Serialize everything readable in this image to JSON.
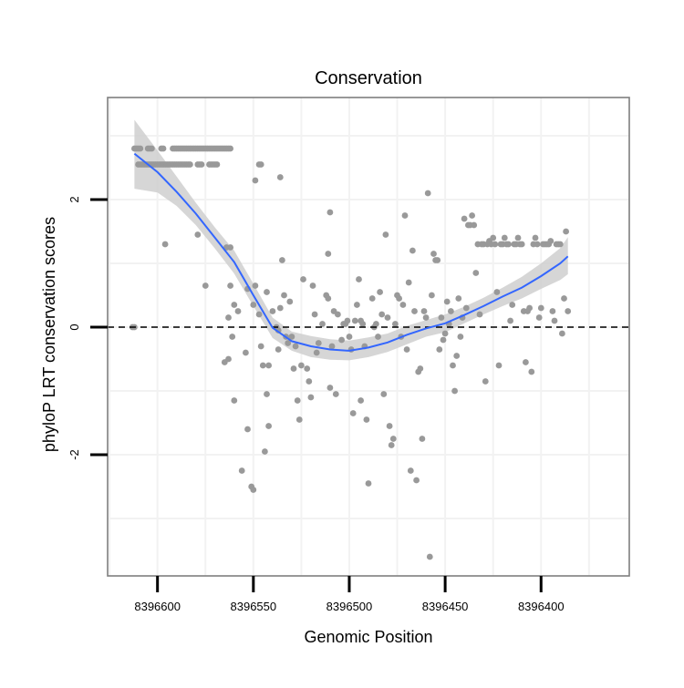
{
  "chart_data": {
    "type": "scatter",
    "title": "Conservation",
    "xlabel": "Genomic Position",
    "ylabel": "phyloP LRT conservation scores",
    "x_reversed": true,
    "xlim": [
      8396626,
      8396354
    ],
    "ylim": [
      -3.9,
      3.6
    ],
    "x_ticks": [
      8396600,
      8396550,
      8396500,
      8396450,
      8396400
    ],
    "x_tick_labels": [
      "8396600",
      "8396550",
      "8396500",
      "8396450",
      "8396400"
    ],
    "y_ticks": [
      -2,
      0,
      2
    ],
    "y_tick_labels": [
      "-2",
      "0",
      "2"
    ],
    "reference_line": {
      "y": 0,
      "style": "dashed"
    },
    "grid": true,
    "colors": {
      "points": "#999999",
      "smooth_line": "#3366ff",
      "confidence_band": "#cccccc",
      "panel_border": "#7f7f7f",
      "grid": "#f2f2f2"
    },
    "points": [
      [
        8396613,
        0.0
      ],
      [
        8396612,
        0.0
      ],
      [
        8396612,
        2.8
      ],
      [
        8396611,
        2.8
      ],
      [
        8396610,
        2.8
      ],
      [
        8396609,
        2.8
      ],
      [
        8396605,
        2.8
      ],
      [
        8396604,
        2.8
      ],
      [
        8396603,
        2.8
      ],
      [
        8396598,
        2.8
      ],
      [
        8396597,
        2.8
      ],
      [
        8396592,
        2.8
      ],
      [
        8396591,
        2.8
      ],
      [
        8396590,
        2.8
      ],
      [
        8396589,
        2.8
      ],
      [
        8396588,
        2.8
      ],
      [
        8396587,
        2.8
      ],
      [
        8396586,
        2.8
      ],
      [
        8396585,
        2.8
      ],
      [
        8396584,
        2.8
      ],
      [
        8396583,
        2.8
      ],
      [
        8396582,
        2.8
      ],
      [
        8396581,
        2.8
      ],
      [
        8396580,
        2.8
      ],
      [
        8396579,
        2.8
      ],
      [
        8396578,
        2.8
      ],
      [
        8396577,
        2.8
      ],
      [
        8396576,
        2.8
      ],
      [
        8396575,
        2.8
      ],
      [
        8396574,
        2.8
      ],
      [
        8396573,
        2.8
      ],
      [
        8396572,
        2.8
      ],
      [
        8396571,
        2.8
      ],
      [
        8396570,
        2.8
      ],
      [
        8396569,
        2.8
      ],
      [
        8396568,
        2.8
      ],
      [
        8396567,
        2.8
      ],
      [
        8396566,
        2.8
      ],
      [
        8396565,
        2.8
      ],
      [
        8396564,
        2.8
      ],
      [
        8396563,
        2.8
      ],
      [
        8396562,
        2.8
      ],
      [
        8396610,
        2.55
      ],
      [
        8396609,
        2.55
      ],
      [
        8396608,
        2.55
      ],
      [
        8396607,
        2.55
      ],
      [
        8396606,
        2.55
      ],
      [
        8396605,
        2.55
      ],
      [
        8396604,
        2.55
      ],
      [
        8396603,
        2.55
      ],
      [
        8396602,
        2.55
      ],
      [
        8396601,
        2.55
      ],
      [
        8396600,
        2.55
      ],
      [
        8396599,
        2.55
      ],
      [
        8396598,
        2.55
      ],
      [
        8396597,
        2.55
      ],
      [
        8396596,
        2.55
      ],
      [
        8396595,
        2.55
      ],
      [
        8396594,
        2.55
      ],
      [
        8396593,
        2.55
      ],
      [
        8396592,
        2.55
      ],
      [
        8396591,
        2.55
      ],
      [
        8396590,
        2.55
      ],
      [
        8396589,
        2.55
      ],
      [
        8396588,
        2.55
      ],
      [
        8396587,
        2.55
      ],
      [
        8396586,
        2.55
      ],
      [
        8396585,
        2.55
      ],
      [
        8396584,
        2.55
      ],
      [
        8396583,
        2.55
      ],
      [
        8396579,
        2.55
      ],
      [
        8396578,
        2.55
      ],
      [
        8396577,
        2.55
      ],
      [
        8396573,
        2.55
      ],
      [
        8396572,
        2.55
      ],
      [
        8396571,
        2.55
      ],
      [
        8396570,
        2.55
      ],
      [
        8396569,
        2.55
      ],
      [
        8396596,
        1.3
      ],
      [
        8396579,
        1.45
      ],
      [
        8396564,
        1.25
      ],
      [
        8396562,
        1.25
      ],
      [
        8396562,
        0.65
      ],
      [
        8396560,
        0.35
      ],
      [
        8396558,
        0.25
      ],
      [
        8396563,
        0.15
      ],
      [
        8396565,
        -0.55
      ],
      [
        8396563,
        -0.5
      ],
      [
        8396561,
        -0.15
      ],
      [
        8396560,
        -1.15
      ],
      [
        8396554,
        -0.4
      ],
      [
        8396556,
        -2.25
      ],
      [
        8396553,
        -1.6
      ],
      [
        8396551,
        -2.5
      ],
      [
        8396550,
        -2.55
      ],
      [
        8396553,
        0.6
      ],
      [
        8396550,
        0.35
      ],
      [
        8396549,
        0.65
      ],
      [
        8396547,
        0.2
      ],
      [
        8396546,
        -0.3
      ],
      [
        8396545,
        -0.6
      ],
      [
        8396544,
        -1.95
      ],
      [
        8396543,
        -1.05
      ],
      [
        8396542,
        -0.6
      ],
      [
        8396542,
        -1.55
      ],
      [
        8396540,
        0.25
      ],
      [
        8396538,
        0.0
      ],
      [
        8396537,
        -0.05
      ],
      [
        8396537,
        -0.35
      ],
      [
        8396535,
        1.05
      ],
      [
        8396534,
        0.5
      ],
      [
        8396533,
        -0.15
      ],
      [
        8396532,
        -0.25
      ],
      [
        8396531,
        0.4
      ],
      [
        8396530,
        -0.15
      ],
      [
        8396529,
        -0.65
      ],
      [
        8396528,
        -0.3
      ],
      [
        8396527,
        -1.15
      ],
      [
        8396526,
        -1.45
      ],
      [
        8396525,
        -0.6
      ],
      [
        8396524,
        0.75
      ],
      [
        8396522,
        -0.65
      ],
      [
        8396521,
        -0.85
      ],
      [
        8396520,
        -1.1
      ],
      [
        8396519,
        0.65
      ],
      [
        8396518,
        0.2
      ],
      [
        8396517,
        -0.4
      ],
      [
        8396516,
        -0.25
      ],
      [
        8396549,
        2.3
      ],
      [
        8396547,
        2.55
      ],
      [
        8396546,
        2.55
      ],
      [
        8396536,
        2.35
      ],
      [
        8396514,
        0.05
      ],
      [
        8396512,
        0.5
      ],
      [
        8396511,
        0.45
      ],
      [
        8396510,
        -0.95
      ],
      [
        8396509,
        -0.3
      ],
      [
        8396508,
        0.25
      ],
      [
        8396507,
        -1.05
      ],
      [
        8396506,
        0.2
      ],
      [
        8396504,
        -0.2
      ],
      [
        8396503,
        0.05
      ],
      [
        8396502,
        0.05
      ],
      [
        8396501,
        0.1
      ],
      [
        8396500,
        -0.15
      ],
      [
        8396499,
        -0.35
      ],
      [
        8396498,
        -1.35
      ],
      [
        8396497,
        0.1
      ],
      [
        8396496,
        0.35
      ],
      [
        8396495,
        0.75
      ],
      [
        8396494,
        -1.15
      ],
      [
        8396493,
        0.05
      ],
      [
        8396492,
        -0.3
      ],
      [
        8396491,
        -1.45
      ],
      [
        8396490,
        -2.45
      ],
      [
        8396510,
        1.8
      ],
      [
        8396494,
        0.1
      ],
      [
        8396488,
        0.45
      ],
      [
        8396487,
        0.0
      ],
      [
        8396486,
        0.05
      ],
      [
        8396485,
        -0.15
      ],
      [
        8396484,
        0.55
      ],
      [
        8396483,
        0.2
      ],
      [
        8396482,
        -1.05
      ],
      [
        8396481,
        1.45
      ],
      [
        8396480,
        0.15
      ],
      [
        8396479,
        -1.55
      ],
      [
        8396478,
        -1.85
      ],
      [
        8396477,
        -1.75
      ],
      [
        8396476,
        0.05
      ],
      [
        8396475,
        0.5
      ],
      [
        8396474,
        0.45
      ],
      [
        8396473,
        -0.15
      ],
      [
        8396472,
        0.35
      ],
      [
        8396471,
        1.75
      ],
      [
        8396470,
        -0.35
      ],
      [
        8396469,
        0.7
      ],
      [
        8396468,
        -2.25
      ],
      [
        8396467,
        1.2
      ],
      [
        8396466,
        0.25
      ],
      [
        8396465,
        -2.4
      ],
      [
        8396464,
        -0.7
      ],
      [
        8396463,
        -0.65
      ],
      [
        8396462,
        -1.75
      ],
      [
        8396461,
        0.25
      ],
      [
        8396460,
        0.15
      ],
      [
        8396459,
        2.1
      ],
      [
        8396458,
        -3.6
      ],
      [
        8396457,
        0.5
      ],
      [
        8396456,
        1.15
      ],
      [
        8396455,
        1.05
      ],
      [
        8396454,
        1.05
      ],
      [
        8396453,
        -0.35
      ],
      [
        8396452,
        0.15
      ],
      [
        8396451,
        -0.2
      ],
      [
        8396450,
        -0.1
      ],
      [
        8396449,
        0.4
      ],
      [
        8396448,
        0.05
      ],
      [
        8396447,
        0.25
      ],
      [
        8396446,
        -0.6
      ],
      [
        8396445,
        -1.0
      ],
      [
        8396444,
        -0.45
      ],
      [
        8396443,
        0.45
      ],
      [
        8396442,
        -0.15
      ],
      [
        8396441,
        0.15
      ],
      [
        8396440,
        1.7
      ],
      [
        8396439,
        0.3
      ],
      [
        8396438,
        1.6
      ],
      [
        8396437,
        1.6
      ],
      [
        8396436,
        1.75
      ],
      [
        8396435,
        1.6
      ],
      [
        8396434,
        0.85
      ],
      [
        8396433,
        1.3
      ],
      [
        8396432,
        0.2
      ],
      [
        8396431,
        1.3
      ],
      [
        8396430,
        1.3
      ],
      [
        8396429,
        -0.85
      ],
      [
        8396428,
        1.3
      ],
      [
        8396427,
        1.35
      ],
      [
        8396426,
        1.3
      ],
      [
        8396425,
        1.4
      ],
      [
        8396424,
        1.3
      ],
      [
        8396423,
        0.55
      ],
      [
        8396422,
        -0.6
      ],
      [
        8396421,
        1.3
      ],
      [
        8396420,
        1.3
      ],
      [
        8396419,
        1.4
      ],
      [
        8396418,
        1.3
      ],
      [
        8396417,
        1.3
      ],
      [
        8396416,
        0.1
      ],
      [
        8396415,
        0.35
      ],
      [
        8396414,
        1.3
      ],
      [
        8396413,
        1.3
      ],
      [
        8396412,
        1.4
      ],
      [
        8396411,
        1.3
      ],
      [
        8396410,
        1.3
      ],
      [
        8396409,
        0.25
      ],
      [
        8396408,
        -0.55
      ],
      [
        8396407,
        0.25
      ],
      [
        8396406,
        0.3
      ],
      [
        8396405,
        -0.7
      ],
      [
        8396404,
        1.3
      ],
      [
        8396403,
        1.4
      ],
      [
        8396402,
        1.3
      ],
      [
        8396401,
        0.15
      ],
      [
        8396400,
        0.3
      ],
      [
        8396399,
        1.3
      ],
      [
        8396398,
        1.3
      ],
      [
        8396397,
        1.3
      ],
      [
        8396396,
        1.3
      ],
      [
        8396395,
        1.35
      ],
      [
        8396394,
        0.25
      ],
      [
        8396393,
        0.1
      ],
      [
        8396392,
        1.3
      ],
      [
        8396391,
        1.3
      ],
      [
        8396390,
        1.3
      ],
      [
        8396389,
        -0.1
      ],
      [
        8396388,
        0.45
      ],
      [
        8396387,
        1.5
      ],
      [
        8396386,
        0.25
      ],
      [
        8396511,
        1.15
      ],
      [
        8396536,
        0.3
      ],
      [
        8396543,
        0.55
      ],
      [
        8396575,
        0.65
      ]
    ],
    "smooth_fit": {
      "x": [
        8396612,
        8396600,
        8396590,
        8396580,
        8396570,
        8396560,
        8396550,
        8396540,
        8396530,
        8396520,
        8396510,
        8396500,
        8396490,
        8396480,
        8396470,
        8396460,
        8396450,
        8396440,
        8396430,
        8396420,
        8396410,
        8396400,
        8396390,
        8396386
      ],
      "y": [
        2.72,
        2.43,
        2.12,
        1.78,
        1.4,
        1.02,
        0.5,
        -0.01,
        -0.22,
        -0.3,
        -0.35,
        -0.37,
        -0.32,
        -0.24,
        -0.12,
        -0.02,
        0.06,
        0.19,
        0.33,
        0.48,
        0.62,
        0.8,
        1.0,
        1.11
      ],
      "lower": [
        2.17,
        2.11,
        1.9,
        1.6,
        1.23,
        0.84,
        0.33,
        -0.17,
        -0.37,
        -0.47,
        -0.51,
        -0.52,
        -0.47,
        -0.39,
        -0.27,
        -0.15,
        -0.08,
        0.06,
        0.2,
        0.33,
        0.45,
        0.6,
        0.74,
        0.83
      ],
      "upper": [
        3.25,
        2.77,
        2.36,
        1.95,
        1.56,
        1.2,
        0.68,
        0.15,
        -0.07,
        -0.14,
        -0.19,
        -0.21,
        -0.16,
        -0.1,
        0.02,
        0.11,
        0.2,
        0.32,
        0.46,
        0.62,
        0.79,
        1.0,
        1.24,
        1.41
      ]
    }
  }
}
